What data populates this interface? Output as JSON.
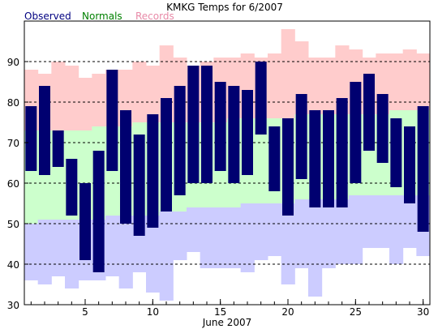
{
  "chart_data": {
    "type": "bar",
    "title": "KMKG Temps for 6/2007",
    "xlabel": "June 2007",
    "ylabel": "",
    "legend": {
      "position": "top-left",
      "entries": [
        {
          "name": "Observed",
          "color": "#000080"
        },
        {
          "name": "Normals",
          "color": "#008000"
        },
        {
          "name": "Records",
          "color": "#e88aa8"
        }
      ]
    },
    "xlim": [
      0.5,
      30.5
    ],
    "ylim": [
      30,
      100
    ],
    "x_ticks": [
      5,
      10,
      15,
      20,
      25,
      30
    ],
    "y_ticks": [
      30,
      40,
      50,
      60,
      70,
      80,
      90
    ],
    "grid": {
      "y_dashed": [
        40,
        50,
        60,
        70,
        80,
        90
      ]
    },
    "colors": {
      "observed": "#000070",
      "normals": "#ccffcc",
      "records_high": "#ffcccc",
      "records_low": "#ccccff"
    },
    "days": [
      1,
      2,
      3,
      4,
      5,
      6,
      7,
      8,
      9,
      10,
      11,
      12,
      13,
      14,
      15,
      16,
      17,
      18,
      19,
      20,
      21,
      22,
      23,
      24,
      25,
      26,
      27,
      28,
      29,
      30
    ],
    "series": [
      {
        "name": "Observed",
        "kind": "high-low",
        "high": [
          79,
          84,
          73,
          66,
          60,
          68,
          88,
          78,
          72,
          77,
          81,
          84,
          89,
          89,
          85,
          84,
          83,
          90,
          74,
          76,
          82,
          78,
          78,
          81,
          85,
          87,
          82,
          76,
          74,
          79
        ],
        "low": [
          63,
          62,
          64,
          52,
          41,
          38,
          63,
          50,
          47,
          49,
          53,
          57,
          60,
          60,
          63,
          60,
          62,
          72,
          58,
          52,
          61,
          54,
          54,
          54,
          60,
          68,
          65,
          59,
          55,
          48
        ]
      },
      {
        "name": "Normals",
        "high": [
          73,
          73,
          73,
          73,
          73,
          74,
          74,
          74,
          75,
          75,
          75,
          75,
          75,
          75,
          75,
          76,
          76,
          76,
          76,
          76,
          77,
          77,
          77,
          77,
          77,
          77,
          77,
          78,
          78,
          78
        ],
        "low": [
          50,
          51,
          51,
          51,
          51,
          51,
          52,
          52,
          52,
          52,
          53,
          53,
          54,
          54,
          54,
          54,
          55,
          55,
          55,
          55,
          56,
          56,
          56,
          56,
          57,
          57,
          57,
          57,
          57,
          57
        ]
      },
      {
        "name": "Records",
        "high": [
          88,
          87,
          90,
          89,
          86,
          87,
          88,
          88,
          90,
          89,
          94,
          91,
          89,
          90,
          91,
          91,
          92,
          91,
          92,
          98,
          95,
          91,
          91,
          94,
          93,
          91,
          92,
          92,
          93,
          92
        ],
        "low": [
          36,
          35,
          37,
          34,
          36,
          36,
          37,
          34,
          38,
          33,
          31,
          41,
          43,
          39,
          39,
          39,
          38,
          41,
          42,
          35,
          39,
          32,
          39,
          40,
          40,
          44,
          44,
          40,
          44,
          42
        ]
      }
    ]
  }
}
